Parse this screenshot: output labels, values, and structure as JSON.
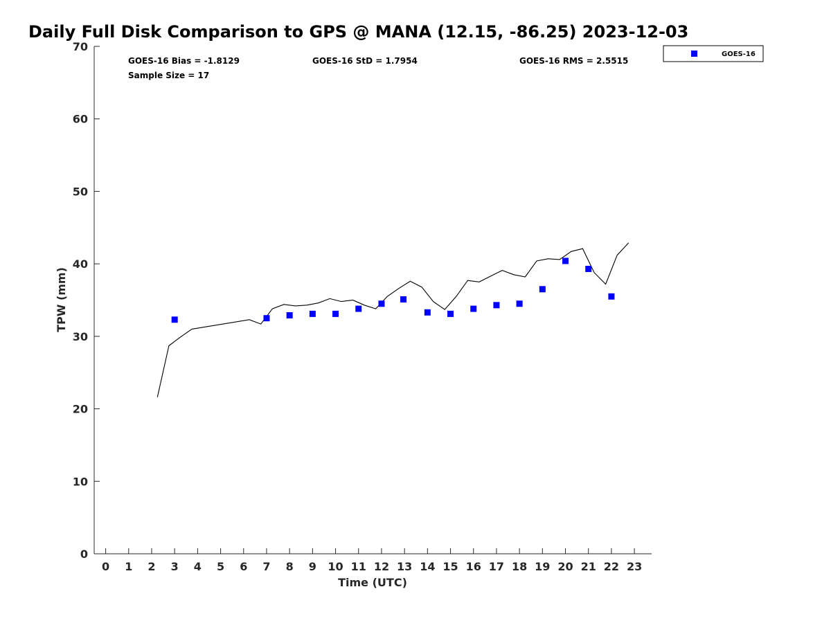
{
  "chart_data": {
    "type": "scatter",
    "title": "Daily Full Disk Comparison to GPS @ MANA (12.15, -86.25) 2023-12-03",
    "xlabel": "Time (UTC)",
    "ylabel": "TPW (mm)",
    "xlim": [
      -0.5,
      23.75
    ],
    "ylim": [
      0,
      70
    ],
    "xticks": [
      "0",
      "1",
      "2",
      "3",
      "4",
      "5",
      "6",
      "7",
      "8",
      "9",
      "10",
      "11",
      "12",
      "13",
      "14",
      "15",
      "16",
      "17",
      "18",
      "19",
      "20",
      "21",
      "22",
      "23"
    ],
    "yticks": [
      "0",
      "10",
      "20",
      "30",
      "40",
      "50",
      "60",
      "70"
    ],
    "grid": false,
    "legend_position": "top-right",
    "stats": {
      "bias": "GOES-16 Bias = -1.8129",
      "std": "GOES-16 StD = 1.7954",
      "rms": "GOES-16 RMS = 2.5515",
      "sample": "Sample Size = 17"
    },
    "series": [
      {
        "name": "GOES-16",
        "kind": "scatter",
        "color": "#0000ff",
        "points": [
          [
            3.0,
            32.3
          ],
          [
            7.0,
            32.5
          ],
          [
            8.0,
            32.9
          ],
          [
            9.0,
            33.1
          ],
          [
            10.0,
            33.1
          ],
          [
            11.0,
            33.8
          ],
          [
            12.0,
            34.5
          ],
          [
            12.95,
            35.1
          ],
          [
            14.0,
            33.3
          ],
          [
            15.0,
            33.1
          ],
          [
            16.0,
            33.8
          ],
          [
            17.0,
            34.3
          ],
          [
            18.0,
            34.5
          ],
          [
            19.0,
            36.5
          ],
          [
            20.0,
            40.4
          ],
          [
            21.0,
            39.3
          ],
          [
            22.0,
            35.5
          ]
        ]
      },
      {
        "kind": "line",
        "color": "#000000",
        "points": [
          [
            2.25,
            21.6
          ],
          [
            2.75,
            28.7
          ],
          [
            3.25,
            29.9
          ],
          [
            3.75,
            31.0
          ],
          [
            6.25,
            32.3
          ],
          [
            6.75,
            31.7
          ],
          [
            7.25,
            33.8
          ],
          [
            7.75,
            34.4
          ],
          [
            8.25,
            34.2
          ],
          [
            8.75,
            34.3
          ],
          [
            9.25,
            34.6
          ],
          [
            9.75,
            35.2
          ],
          [
            10.25,
            34.8
          ],
          [
            10.75,
            35.0
          ],
          [
            11.25,
            34.3
          ],
          [
            11.75,
            33.8
          ],
          [
            12.25,
            35.5
          ],
          [
            12.75,
            36.6
          ],
          [
            13.25,
            37.6
          ],
          [
            13.75,
            36.8
          ],
          [
            14.25,
            34.8
          ],
          [
            14.75,
            33.7
          ],
          [
            15.25,
            35.5
          ],
          [
            15.75,
            37.7
          ],
          [
            16.25,
            37.5
          ],
          [
            16.75,
            38.3
          ],
          [
            17.25,
            39.1
          ],
          [
            17.75,
            38.5
          ],
          [
            18.25,
            38.2
          ],
          [
            18.75,
            40.4
          ],
          [
            19.25,
            40.7
          ],
          [
            19.75,
            40.6
          ],
          [
            20.25,
            41.7
          ],
          [
            20.75,
            42.1
          ],
          [
            21.25,
            38.8
          ],
          [
            21.75,
            37.2
          ],
          [
            22.25,
            41.2
          ],
          [
            22.75,
            42.9
          ]
        ]
      }
    ]
  }
}
